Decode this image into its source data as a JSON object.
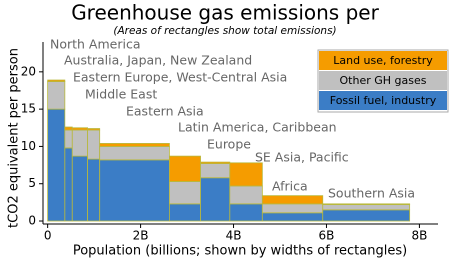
{
  "chart_data": {
    "type": "variwide-stacked-bar",
    "title": "Greenhouse gas emissions per",
    "subtitle": "(Areas of rectangles show total emissions)",
    "x_label": "Population (billions; shown by widths of rectangles)",
    "y_label": "tCO2 equivalent per person",
    "categories": [
      "North America",
      "Australia, Japan, New Zealand",
      "Eastern Europe, West-Central Asia",
      "Middle East",
      "Eastern Asia",
      "Latin America, Caribbean",
      "Europe",
      "SE Asia, Pacific",
      "Africa",
      "Southern Asia"
    ],
    "widths": [
      0.37,
      0.16,
      0.33,
      0.26,
      1.5,
      0.67,
      0.63,
      0.7,
      1.3,
      1.87
    ],
    "series": [
      {
        "name": "Fossil fuel, industry",
        "color": "#3b7dc6",
        "values": [
          15,
          9.8,
          8.7,
          8.3,
          8.2,
          2.3,
          5.8,
          2.3,
          1.1,
          1.5
        ]
      },
      {
        "name": "Other GH gases",
        "color": "#c0c0c0",
        "values": [
          3.7,
          2.4,
          3.5,
          3.9,
          1.8,
          3.0,
          1.9,
          2.4,
          1.2,
          0.7
        ]
      },
      {
        "name": "Land use, forestry",
        "color": "#f59c00",
        "values": [
          0.2,
          0.4,
          0.3,
          0.2,
          0.4,
          3.4,
          0.2,
          3.1,
          1.1,
          0.1
        ]
      }
    ],
    "xlim": [
      -0.1,
      8.4
    ],
    "ylim": [
      -0.4,
      24
    ],
    "xticks": [
      0,
      {
        "value": 2,
        "label": "2B"
      },
      {
        "value": 4,
        "label": "4B"
      },
      {
        "value": 6,
        "label": "6B"
      },
      {
        "value": 8,
        "label": "8B"
      }
    ],
    "yticks": [
      0,
      5,
      10,
      15,
      20
    ],
    "legend": "upper right"
  }
}
